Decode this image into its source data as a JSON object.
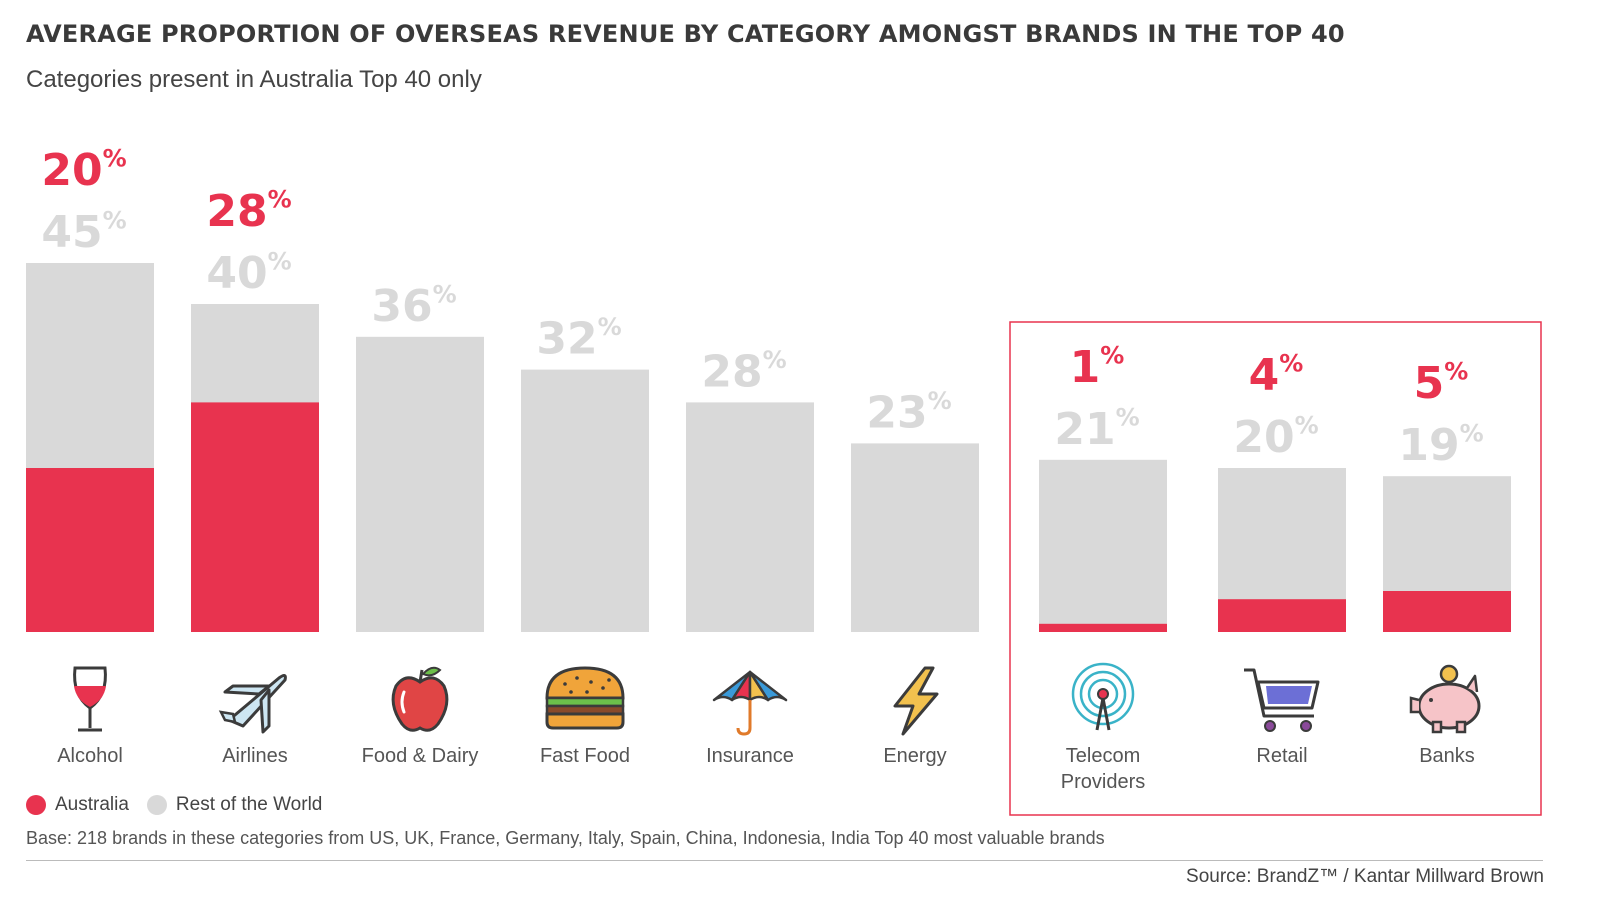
{
  "title": "AVERAGE PROPORTION OF OVERSEAS REVENUE BY CATEGORY AMONGST BRANDS IN THE TOP 40",
  "subtitle": "Categories present in Australia Top 40 only",
  "legend": [
    {
      "name": "Australia",
      "color": "#e8334f"
    },
    {
      "name": "Rest of the World",
      "color": "#d9d9d9"
    }
  ],
  "base_note": "Base: 218 brands in these categories from US, UK, France, Germany, Italy, Spain, China, Indonesia, India Top 40 most valuable brands",
  "source": "Source: BrandZ™ / Kantar Millward Brown",
  "colors": {
    "australia": "#e8334f",
    "rest": "#d9d9d9",
    "australia_label": "#e8334f",
    "rest_label": "#d9d9d9",
    "highlight_box": "#e8334f"
  },
  "chart_data": {
    "type": "bar",
    "categories": [
      "Alcohol",
      "Airlines",
      "Food & Dairy",
      "Fast Food",
      "Insurance",
      "Energy",
      "Telecom Providers",
      "Retail",
      "Banks"
    ],
    "category_lines": [
      [
        "Alcohol"
      ],
      [
        "Airlines"
      ],
      [
        "Food & Dairy"
      ],
      [
        "Fast Food"
      ],
      [
        "Insurance"
      ],
      [
        "Energy"
      ],
      [
        "Telecom",
        "Providers"
      ],
      [
        "Retail"
      ],
      [
        "Banks"
      ]
    ],
    "icons": [
      "wine-glass-icon",
      "airplane-icon",
      "apple-icon",
      "burger-icon",
      "umbrella-icon",
      "lightning-icon",
      "signal-tower-icon",
      "shopping-cart-icon",
      "piggy-bank-icon"
    ],
    "series": [
      {
        "name": "Australia",
        "values": [
          20,
          28,
          null,
          null,
          null,
          null,
          1,
          4,
          5
        ]
      },
      {
        "name": "Rest of the World",
        "values": [
          45,
          40,
          36,
          32,
          28,
          23,
          21,
          20,
          19
        ]
      }
    ],
    "value_suffix": "%",
    "highlighted_categories": [
      "Telecom Providers",
      "Retail",
      "Banks"
    ],
    "ylim": [
      0,
      45
    ]
  }
}
